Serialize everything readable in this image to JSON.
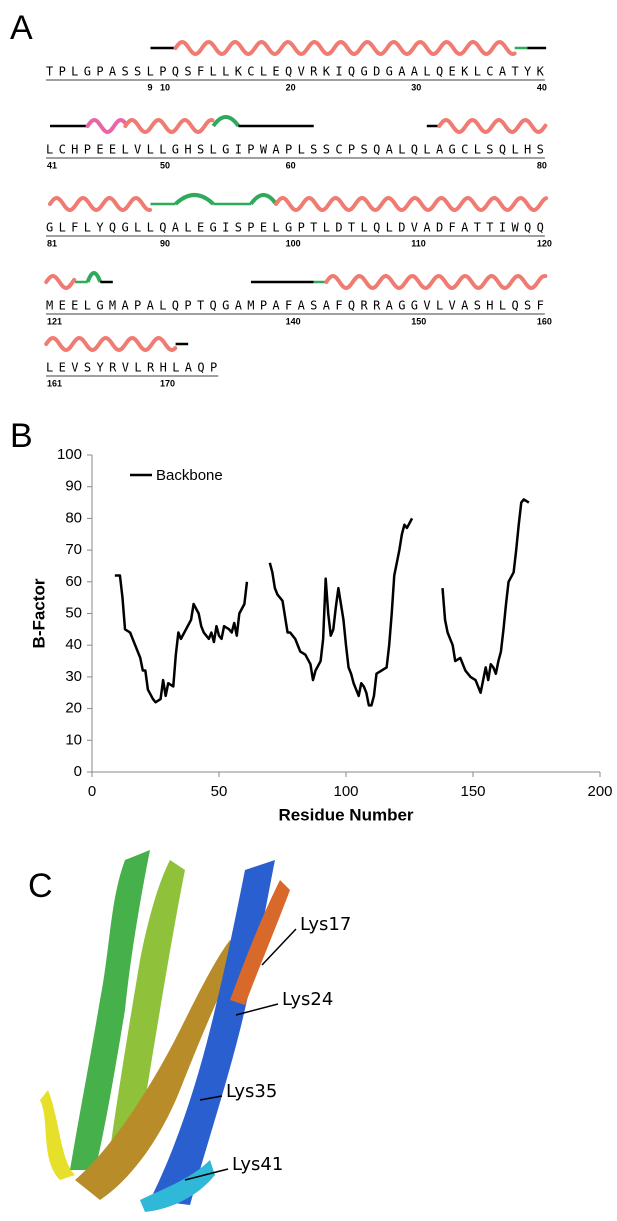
{
  "panels": {
    "a": "A",
    "b": "B",
    "c": "C"
  },
  "sequence": {
    "rows": [
      {
        "residues": "TPLGPASSLPQSFLLKCLEQVRKIQGDGAALQEKLCATYK",
        "numbers": [
          9,
          10,
          20,
          30,
          40
        ]
      },
      {
        "residues": "LCHPEELVLLGHSLGIPWAPLSSCPSQALQLAGCLSQLHS",
        "numbers": [
          41,
          50,
          60,
          80
        ]
      },
      {
        "residues": "GLFLYQGLLQALEGISPELGPTLDTLQLDVADFATTIWQQ",
        "numbers": [
          81,
          90,
          100,
          110,
          120
        ]
      },
      {
        "residues": "MEELGMAPALQPTQGAMPAFASAFQRRAGGVLVASHLQSF",
        "numbers": [
          121,
          140,
          150,
          160
        ]
      },
      {
        "residues": "LEVSYRVLRHLAQP",
        "numbers": [
          161,
          170
        ]
      }
    ]
  },
  "chart_data": {
    "type": "line",
    "xlabel": "Residue Number",
    "ylabel": "B-Factor",
    "xlim": [
      0,
      200
    ],
    "xticks": [
      0,
      50,
      100,
      150,
      200
    ],
    "ylim": [
      0,
      100
    ],
    "yticks": [
      0,
      10,
      20,
      30,
      40,
      50,
      60,
      70,
      80,
      90,
      100
    ],
    "legend": "upper-left",
    "x": [
      9,
      11,
      12,
      13,
      15,
      17,
      19,
      20,
      21,
      22,
      24,
      25,
      27,
      28,
      29,
      30,
      32,
      33,
      34,
      35,
      37,
      39,
      40,
      42,
      43,
      44,
      46,
      47,
      48,
      49,
      50,
      51,
      52,
      54,
      55,
      56,
      57,
      58,
      60,
      61,
      65,
      70,
      71,
      72,
      73,
      75,
      77,
      78,
      80,
      82,
      84,
      86,
      87,
      88,
      90,
      91,
      92,
      93,
      94,
      95,
      96,
      97,
      99,
      100,
      101,
      102,
      103,
      104,
      105,
      106,
      107,
      108,
      109,
      110,
      111,
      112,
      114,
      116,
      117,
      118,
      119,
      121,
      122,
      123,
      124,
      126,
      132,
      138,
      139,
      140,
      142,
      143,
      145,
      147,
      149,
      151,
      152,
      153,
      155,
      156,
      157,
      158,
      159,
      160,
      161,
      162,
      163,
      164,
      166,
      167,
      168,
      169,
      170,
      172
    ],
    "series": [
      {
        "name": "Backbone",
        "color": "#000000",
        "values": [
          62,
          62,
          55,
          45,
          44,
          40,
          36,
          32,
          32,
          26,
          23,
          22,
          23,
          29,
          24,
          28,
          27,
          37,
          44,
          42,
          45,
          48,
          53,
          50,
          46,
          44,
          42,
          44,
          41,
          46,
          43,
          42,
          46,
          45,
          44,
          47,
          43,
          50,
          53,
          60,
          null,
          66,
          63,
          58,
          56,
          54,
          44,
          44,
          42,
          38,
          37,
          34,
          29,
          32,
          35,
          42,
          61,
          50,
          43,
          45,
          52,
          58,
          48,
          40,
          33,
          31,
          28,
          26,
          24,
          28,
          27,
          25,
          21,
          21,
          24,
          31,
          32,
          33,
          40,
          50,
          62,
          70,
          75,
          78,
          77,
          80,
          null,
          58,
          48,
          44,
          40,
          35,
          36,
          32,
          30,
          29,
          27,
          25,
          33,
          29,
          34,
          33,
          31,
          35,
          38,
          45,
          53,
          60,
          63,
          70,
          78,
          85,
          86,
          85
        ]
      }
    ]
  },
  "structure": {
    "labels": [
      "Lys17",
      "Lys24",
      "Lys35",
      "Lys41"
    ]
  }
}
